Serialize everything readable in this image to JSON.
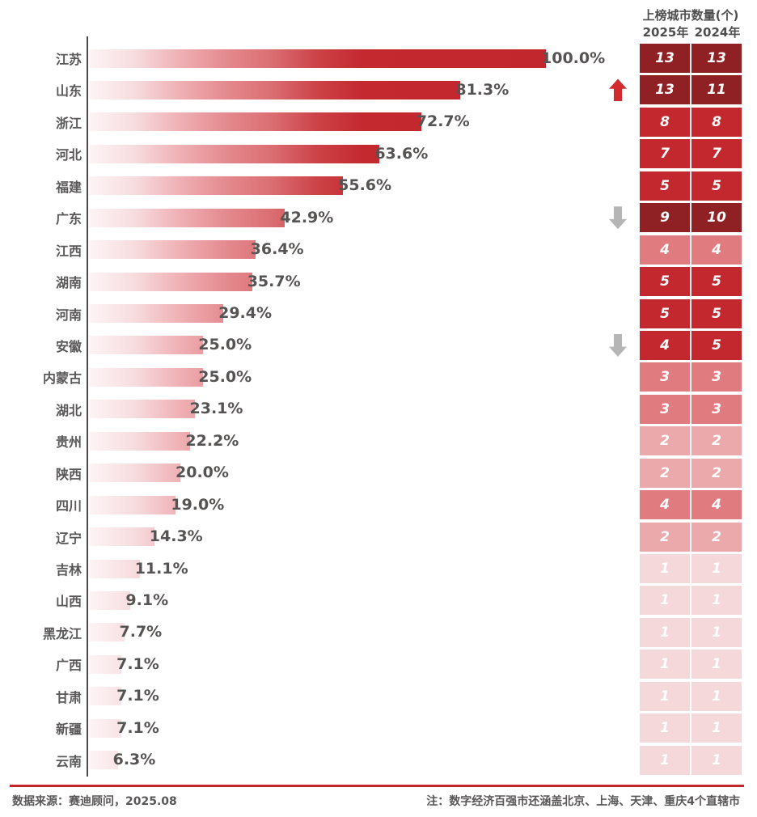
{
  "table_header": {
    "title": "上榜城市数量(个)",
    "col_2025": "2025年",
    "col_2024": "2024年"
  },
  "footer": {
    "source": "数据来源：赛迪顾问，2025.08",
    "note": "注：数字经济百强市还涵盖北京、上海、天津、重庆4个直辖市"
  },
  "colors": {
    "bar_gradient_start": "#FDF4F5",
    "bar_gradient_end": "#C1272D",
    "up_arrow": "#D12A2F",
    "down_arrow": "#B5B5B5",
    "rule": "#C1272D",
    "text": "#595757",
    "tier_colors": {
      "t1": "#8F2124",
      "t2": "#C2282D",
      "t3": "#E07C80",
      "t4": "#ECA9AC",
      "t5": "#F5D8DA"
    }
  },
  "chart_data": {
    "type": "bar",
    "orientation": "horizontal",
    "title": "",
    "xlabel": "",
    "ylabel": "",
    "xlim": [
      0,
      100
    ],
    "unit": "%",
    "categories": [
      "江苏",
      "山东",
      "浙江",
      "河北",
      "福建",
      "广东",
      "江西",
      "湖南",
      "河南",
      "安徽",
      "内蒙古",
      "湖北",
      "贵州",
      "陕西",
      "四川",
      "辽宁",
      "吉林",
      "山西",
      "黑龙江",
      "广西",
      "甘肃",
      "新疆",
      "云南"
    ],
    "values": [
      100.0,
      81.3,
      72.7,
      63.6,
      55.6,
      42.9,
      36.4,
      35.7,
      29.4,
      25.0,
      25.0,
      23.1,
      22.2,
      20.0,
      19.0,
      14.3,
      11.1,
      9.1,
      7.7,
      7.1,
      7.1,
      7.1,
      6.3
    ],
    "value_labels": [
      "100.0%",
      "81.3%",
      "72.7%",
      "63.6%",
      "55.6%",
      "42.9%",
      "36.4%",
      "35.7%",
      "29.4%",
      "25.0%",
      "25.0%",
      "23.1%",
      "22.2%",
      "20.0%",
      "19.0%",
      "14.3%",
      "11.1%",
      "9.1%",
      "7.7%",
      "7.1%",
      "7.1%",
      "7.1%",
      "6.3%"
    ],
    "series": [
      {
        "name": "2025年",
        "values": [
          13,
          13,
          8,
          7,
          5,
          9,
          4,
          5,
          5,
          4,
          3,
          3,
          2,
          2,
          4,
          2,
          1,
          1,
          1,
          1,
          1,
          1,
          1
        ]
      },
      {
        "name": "2024年",
        "values": [
          13,
          11,
          8,
          7,
          5,
          10,
          4,
          5,
          5,
          5,
          3,
          3,
          2,
          2,
          4,
          2,
          1,
          1,
          1,
          1,
          1,
          1,
          1
        ]
      }
    ],
    "row_color_tiers": [
      "t1",
      "t1",
      "t2",
      "t2",
      "t2",
      "t1",
      "t3",
      "t2",
      "t2",
      "t2",
      "t3",
      "t3",
      "t4",
      "t4",
      "t3",
      "t4",
      "t5",
      "t5",
      "t5",
      "t5",
      "t5",
      "t5",
      "t5"
    ],
    "row_arrows": [
      null,
      "up",
      null,
      null,
      null,
      "down",
      null,
      null,
      null,
      "down",
      null,
      null,
      null,
      null,
      null,
      null,
      null,
      null,
      null,
      null,
      null,
      null,
      null
    ],
    "legend_position": "top-right",
    "grid": false
  }
}
